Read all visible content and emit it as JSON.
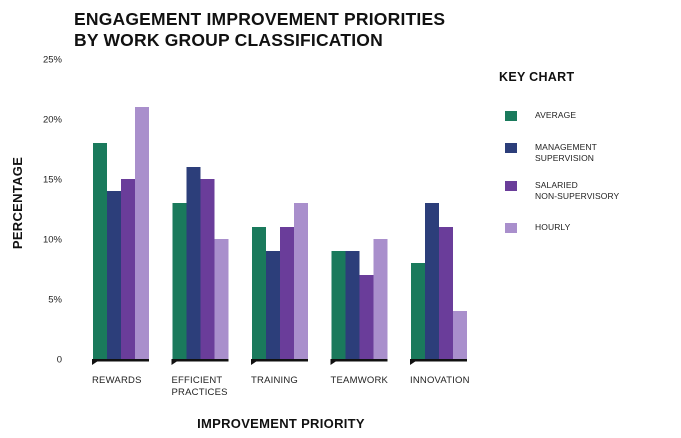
{
  "title_lines": [
    "ENGAGEMENT IMPROVEMENT PRIORITIES",
    "BY WORK GROUP CLASSIFICATION"
  ],
  "chart_data": {
    "type": "bar",
    "title": "ENGAGEMENT IMPROVEMENT PRIORITIES BY WORK GROUP CLASSIFICATION",
    "xlabel": "IMPROVEMENT PRIORITY",
    "ylabel": "PERCENTAGE",
    "categories": [
      [
        "REWARDS"
      ],
      [
        "EFFICIENT",
        "PRACTICES"
      ],
      [
        "TRAINING"
      ],
      [
        "TEAMWORK"
      ],
      [
        "INNOVATION"
      ]
    ],
    "ylim": [
      0,
      25
    ],
    "yticks": [
      {
        "value": 0,
        "label": "0"
      },
      {
        "value": 5,
        "label": "5%"
      },
      {
        "value": 10,
        "label": "10%"
      },
      {
        "value": 15,
        "label": "15%"
      },
      {
        "value": 20,
        "label": "20%"
      },
      {
        "value": 25,
        "label": "25%"
      }
    ],
    "grid": false,
    "legend_title": "KEY CHART",
    "legend_position": "right",
    "series": [
      {
        "name": [
          "AVERAGE"
        ],
        "color": "#1a7a5c",
        "values": [
          18,
          13,
          11,
          9,
          8
        ]
      },
      {
        "name": [
          "MANAGEMENT",
          "SUPERVISION"
        ],
        "color": "#2c3e7a",
        "values": [
          14,
          16,
          9,
          9,
          13
        ]
      },
      {
        "name": [
          "SALARIED",
          "NON-SUPERVISORY"
        ],
        "color": "#6a3d9a",
        "values": [
          15,
          15,
          11,
          7,
          11
        ]
      },
      {
        "name": [
          "HOURLY"
        ],
        "color": "#a98fcc",
        "values": [
          21,
          10,
          13,
          10,
          4
        ]
      }
    ]
  }
}
